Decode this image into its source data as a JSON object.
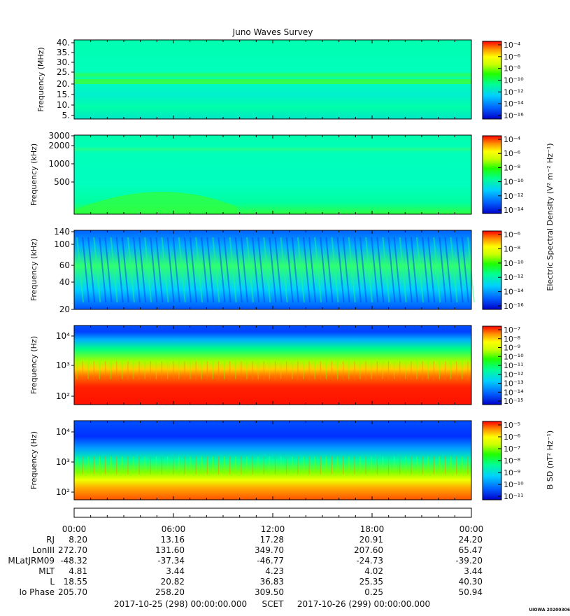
{
  "title": "Juno Waves Survey",
  "credit": "UIOWA 20200306",
  "colorbar_labels": {
    "e": "Electric Spectral Density (V² m⁻² Hz⁻¹)",
    "b": "B SD (nT² Hz⁻¹)"
  },
  "panels": [
    {
      "ylabel": "Frequency (MHz)",
      "yticks": [
        "40.",
        "35.",
        "30.",
        "25.",
        "20.",
        "15.",
        "10.",
        "5."
      ],
      "cbar_ticks": [
        "10⁻⁴",
        "10⁻⁶",
        "10⁻⁸",
        "10⁻¹⁰",
        "10⁻¹²",
        "10⁻¹⁴",
        "10⁻¹⁶"
      ]
    },
    {
      "ylabel": "Frequency (kHz)",
      "yticks": [
        "3000",
        "2000",
        "1000",
        "500"
      ],
      "cbar_ticks": [
        "10⁻⁴",
        "10⁻⁶",
        "10⁻⁸",
        "10⁻¹⁰",
        "10⁻¹²",
        "10⁻¹⁴"
      ]
    },
    {
      "ylabel": "Frequency (kHz)",
      "yticks": [
        "140",
        "100",
        "60",
        "40",
        "20"
      ],
      "cbar_ticks": [
        "10⁻⁶",
        "10⁻⁸",
        "10⁻¹⁰",
        "10⁻¹²",
        "10⁻¹⁴",
        "10⁻¹⁶"
      ]
    },
    {
      "ylabel": "Frequency (Hz)",
      "yticks": [
        "10⁴",
        "10³",
        "10²"
      ],
      "cbar_ticks": [
        "10⁻⁷",
        "10⁻⁸",
        "10⁻⁹",
        "10⁻¹⁰",
        "10⁻¹¹",
        "10⁻¹²",
        "10⁻¹³",
        "10⁻¹⁴",
        "10⁻¹⁵"
      ]
    },
    {
      "ylabel": "Frequency (Hz)",
      "yticks": [
        "10⁴",
        "10³",
        "10²"
      ],
      "cbar_ticks": [
        "10⁻⁵",
        "10⁻⁶",
        "10⁻⁷",
        "10⁻⁸",
        "10⁻⁹",
        "10⁻¹⁰",
        "10⁻¹¹"
      ]
    }
  ],
  "chart_data": {
    "type": "heatmap",
    "title": "Juno Waves Survey",
    "x": [
      "00:00",
      "06:00",
      "12:00",
      "18:00",
      "00:00"
    ],
    "ephemeris": [
      {
        "label": "RJ",
        "values": [
          "8.20",
          "13.16",
          "17.28",
          "20.91",
          "24.20"
        ]
      },
      {
        "label": "LonIII",
        "values": [
          "272.70",
          "131.60",
          "349.70",
          "207.60",
          "65.47"
        ]
      },
      {
        "label": "MLatJRM09",
        "values": [
          "-48.32",
          "-37.34",
          "-46.77",
          "-24.73",
          "-39.20"
        ]
      },
      {
        "label": "MLT",
        "values": [
          "4.81",
          "3.44",
          "4.23",
          "4.02",
          "3.44"
        ]
      },
      {
        "label": "L",
        "values": [
          "18.55",
          "20.82",
          "36.83",
          "25.35",
          "40.30"
        ]
      },
      {
        "label": "Io Phase",
        "values": [
          "205.70",
          "258.20",
          "309.50",
          "0.25",
          "50.94"
        ]
      }
    ],
    "footer": {
      "start": "2017-10-25 (298) 00:00:00.000",
      "label": "SCET",
      "end": "2017-10-26 (299) 00:00:00.000"
    }
  }
}
